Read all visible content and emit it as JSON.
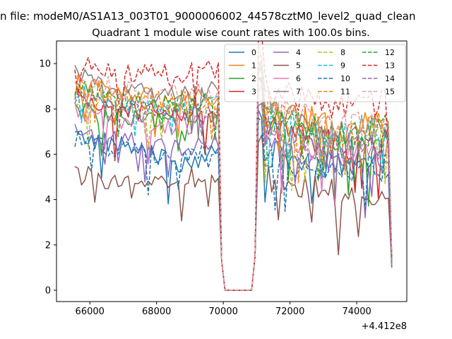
{
  "figure": {
    "suptitle": "n file: modeM0/AS1A13_003T01_9000006002_44578cztM0_level2_quad_clean",
    "title": "Quadrant 1 module wise count rates with 100.0s bins.",
    "offset_text": "+4.412e8"
  },
  "chart_data": {
    "type": "line",
    "title": "Quadrant 1 module wise count rates with 100.0s bins.",
    "xlabel": "",
    "ylabel": "",
    "x_offset": 441200000,
    "xlim": [
      65000,
      75500
    ],
    "ylim": [
      -0.5,
      11
    ],
    "xticks": [
      66000,
      68000,
      70000,
      72000,
      74000
    ],
    "xtick_labels": [
      "66000",
      "68000",
      "70000",
      "72000",
      "74000"
    ],
    "yticks": [
      0,
      2,
      4,
      6,
      8,
      10
    ],
    "ytick_labels": [
      "0",
      "2",
      "4",
      "6",
      "8",
      "10"
    ],
    "grid": false,
    "legend": {
      "placement": "top-right",
      "columns": 4
    },
    "x_range": [
      65550,
      75100
    ],
    "gap_start": 69950,
    "gap_end": 70950,
    "series": [
      {
        "name": "0",
        "color": "#1f77b4",
        "dash": false,
        "before": [
          6.8,
          6.4,
          5.6,
          6.0
        ],
        "after": [
          6.2,
          5.7,
          5.4,
          5.6
        ]
      },
      {
        "name": "1",
        "color": "#ff7f0e",
        "dash": false,
        "before": [
          9.2,
          8.6,
          8.4,
          8.5
        ],
        "after": [
          8.4,
          7.6,
          7.0,
          7.5
        ]
      },
      {
        "name": "2",
        "color": "#2ca02c",
        "dash": false,
        "before": [
          8.0,
          7.5,
          7.4,
          7.8
        ],
        "after": [
          8.0,
          7.0,
          6.4,
          7.0
        ]
      },
      {
        "name": "3",
        "color": "#d62728",
        "dash": false,
        "before": [
          8.4,
          8.0,
          7.8,
          8.0
        ],
        "after": [
          7.6,
          6.8,
          6.3,
          6.8
        ]
      },
      {
        "name": "4",
        "color": "#9467bd",
        "dash": false,
        "before": [
          7.0,
          6.6,
          6.2,
          6.5
        ],
        "after": [
          6.6,
          6.0,
          5.6,
          6.0
        ]
      },
      {
        "name": "5",
        "color": "#8c564b",
        "dash": false,
        "before": [
          5.1,
          4.8,
          4.8,
          5.2
        ],
        "after": [
          5.1,
          4.6,
          4.2,
          4.4
        ]
      },
      {
        "name": "6",
        "color": "#e377c2",
        "dash": false,
        "before": [
          7.9,
          7.4,
          7.2,
          7.4
        ],
        "after": [
          7.2,
          6.5,
          6.0,
          6.4
        ]
      },
      {
        "name": "7",
        "color": "#7f7f7f",
        "dash": false,
        "before": [
          9.5,
          8.8,
          8.6,
          8.8
        ],
        "after": [
          8.5,
          7.4,
          6.8,
          7.2
        ]
      },
      {
        "name": "8",
        "color": "#bcbd22",
        "dash": true,
        "before": [
          8.6,
          8.2,
          8.0,
          8.2
        ],
        "after": [
          7.8,
          6.9,
          6.5,
          6.9
        ]
      },
      {
        "name": "9",
        "color": "#17becf",
        "dash": true,
        "before": [
          8.8,
          8.3,
          8.1,
          8.3
        ],
        "after": [
          7.9,
          7.2,
          6.9,
          7.6
        ]
      },
      {
        "name": "10",
        "color": "#1f77b4",
        "dash": true,
        "before": [
          6.7,
          6.2,
          6.0,
          6.2
        ],
        "after": [
          6.0,
          5.5,
          5.3,
          5.5
        ]
      },
      {
        "name": "11",
        "color": "#ff7f0e",
        "dash": true,
        "before": [
          9.0,
          8.5,
          8.3,
          8.4
        ],
        "after": [
          8.2,
          7.4,
          6.9,
          7.4
        ]
      },
      {
        "name": "12",
        "color": "#2ca02c",
        "dash": true,
        "before": [
          8.9,
          8.4,
          8.2,
          8.4
        ],
        "after": [
          8.0,
          7.3,
          6.8,
          7.3
        ]
      },
      {
        "name": "13",
        "color": "#d62728",
        "dash": true,
        "before": [
          10.0,
          9.6,
          9.5,
          9.8
        ],
        "after": [
          9.4,
          8.4,
          7.9,
          8.4
        ]
      },
      {
        "name": "14",
        "color": "#9467bd",
        "dash": true,
        "before": [
          8.5,
          8.0,
          7.8,
          8.0
        ],
        "after": [
          7.6,
          6.8,
          6.3,
          6.7
        ]
      },
      {
        "name": "15",
        "color": "#e8a0a0",
        "dash": true,
        "before": [
          9.4,
          8.8,
          8.6,
          8.8
        ],
        "after": [
          8.8,
          7.8,
          7.2,
          7.6
        ]
      }
    ]
  }
}
